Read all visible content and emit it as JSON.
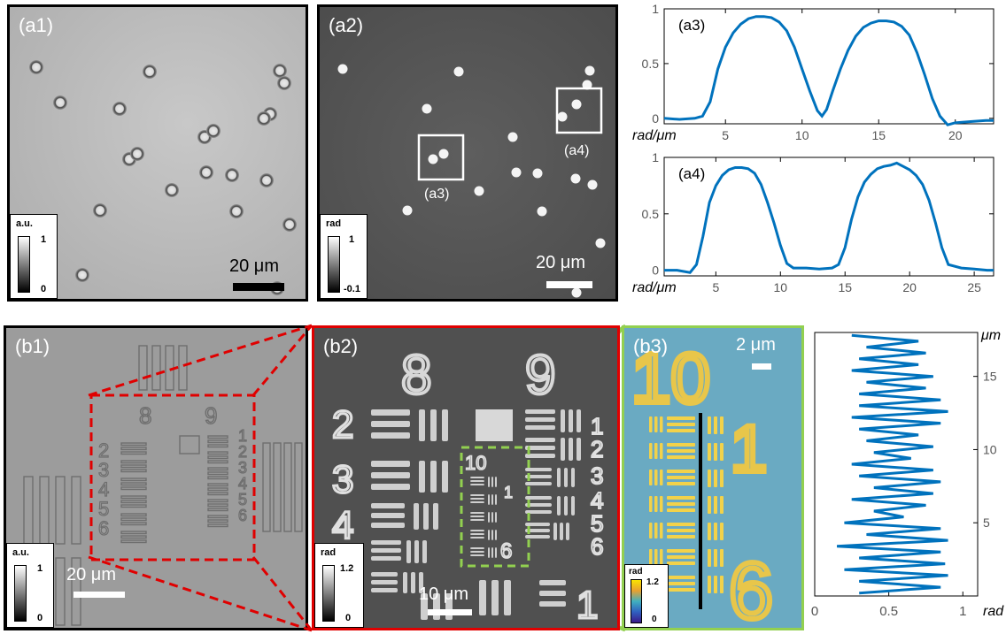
{
  "panels": {
    "a1": {
      "label": "(a1)",
      "colorbar": {
        "unit": "a.u.",
        "max": "1",
        "min": "0"
      },
      "scalebar": "20 μm"
    },
    "a2": {
      "label": "(a2)",
      "colorbar": {
        "unit": "rad",
        "max": "1",
        "min": "-0.1"
      },
      "scalebar": "20 μm",
      "boxes": [
        "(a3)",
        "(a4)"
      ]
    },
    "b1": {
      "label": "(b1)",
      "colorbar": {
        "unit": "a.u.",
        "max": "1",
        "min": "0"
      },
      "scalebar": "20 μm"
    },
    "b2": {
      "label": "(b2)",
      "colorbar": {
        "unit": "rad",
        "max": "1.2",
        "min": "0"
      },
      "scalebar": "10 μm"
    },
    "b3": {
      "label": "(b3)",
      "colorbar": {
        "unit": "rad",
        "max": "1.2",
        "min": "0"
      },
      "scalebar": "2 μm"
    }
  },
  "target_labels": {
    "group8": "8",
    "group9": "9",
    "el2": "2",
    "el3": "3",
    "el4": "4",
    "el5": "5",
    "el6": "6",
    "r1": "1",
    "r2": "2",
    "r3": "3",
    "r4": "4",
    "r5": "5",
    "r6": "6",
    "g10": "10",
    "g10_1": "1",
    "g10_6": "6",
    "b2_bottom_1": "1"
  },
  "colors": {
    "accent_red": "#e00000",
    "accent_green": "#92d050",
    "line_blue": "#0072bd"
  },
  "chart_data": [
    {
      "type": "line",
      "label": "(a3)",
      "xlabel": "rad/μm",
      "xlim": [
        1,
        22.5
      ],
      "ylim": [
        -0.05,
        1
      ],
      "xticks": [
        5,
        10,
        15,
        20
      ],
      "yticks": [
        0,
        0.5,
        1
      ],
      "ytick_labels": [
        "0",
        "0.5",
        "1"
      ],
      "x": [
        1,
        2,
        3,
        3.5,
        4,
        4.5,
        5,
        5.5,
        6,
        6.5,
        7,
        7.5,
        8,
        8.5,
        9,
        9.5,
        10,
        10.5,
        11,
        11.3,
        11.6,
        12,
        12.5,
        13,
        13.5,
        14,
        14.5,
        15,
        15.5,
        16,
        16.5,
        17,
        17.5,
        18,
        18.5,
        19,
        19.5,
        20,
        21,
        22,
        22.5
      ],
      "y": [
        0.0,
        -0.01,
        0.0,
        0.02,
        0.15,
        0.45,
        0.65,
        0.78,
        0.86,
        0.91,
        0.93,
        0.93,
        0.92,
        0.88,
        0.8,
        0.65,
        0.45,
        0.25,
        0.07,
        0.02,
        0.08,
        0.25,
        0.45,
        0.62,
        0.75,
        0.83,
        0.87,
        0.89,
        0.89,
        0.88,
        0.84,
        0.76,
        0.6,
        0.4,
        0.18,
        0.02,
        -0.06,
        -0.04,
        -0.03,
        -0.02,
        -0.02
      ]
    },
    {
      "type": "line",
      "label": "(a4)",
      "xlabel": "rad/μm",
      "xlim": [
        1,
        26.5
      ],
      "ylim": [
        -0.05,
        1
      ],
      "xticks": [
        5,
        10,
        15,
        20,
        25
      ],
      "yticks": [
        0,
        0.5,
        1
      ],
      "ytick_labels": [
        "0",
        "0.5",
        "1"
      ],
      "x": [
        1,
        2,
        3,
        3.5,
        4,
        4.5,
        5,
        5.5,
        6,
        6.5,
        7,
        7.5,
        8,
        8.5,
        9,
        9.5,
        10,
        10.5,
        11,
        11.5,
        12,
        13,
        14,
        14.5,
        15,
        15.5,
        16,
        16.5,
        17,
        17.5,
        18,
        18.5,
        19,
        19.5,
        20,
        20.5,
        21,
        21.5,
        22,
        22.5,
        23,
        24,
        25,
        26,
        26.5
      ],
      "y": [
        0.0,
        0.0,
        -0.02,
        0.05,
        0.3,
        0.6,
        0.75,
        0.84,
        0.89,
        0.91,
        0.91,
        0.9,
        0.86,
        0.76,
        0.6,
        0.42,
        0.22,
        0.06,
        0.02,
        0.02,
        0.02,
        0.01,
        0.02,
        0.05,
        0.2,
        0.45,
        0.65,
        0.78,
        0.85,
        0.9,
        0.92,
        0.93,
        0.95,
        0.92,
        0.89,
        0.84,
        0.76,
        0.62,
        0.42,
        0.2,
        0.05,
        0.02,
        0.01,
        0.0,
        0.0
      ]
    },
    {
      "type": "line",
      "label": "",
      "xlabel": "rad",
      "ylabel": "μm",
      "xlim": [
        0,
        1.1
      ],
      "ylim": [
        0,
        18
      ],
      "xticks": [
        0,
        0.5,
        1
      ],
      "xtick_labels": [
        "0",
        "0.5",
        "1"
      ],
      "yticks": [
        5,
        10,
        15
      ],
      "orientation": "vertical",
      "y": [
        0.2,
        0.6,
        1.0,
        1.4,
        1.8,
        2.2,
        2.6,
        3.0,
        3.4,
        3.8,
        4.2,
        4.6,
        5.0,
        5.4,
        5.8,
        6.2,
        6.6,
        7.0,
        7.4,
        7.8,
        8.2,
        8.6,
        9.0,
        9.4,
        9.8,
        10.2,
        10.6,
        11.0,
        11.4,
        11.8,
        12.2,
        12.6,
        13.0,
        13.4,
        13.8,
        14.2,
        14.6,
        15.0,
        15.4,
        15.8,
        16.2,
        16.6,
        17.0,
        17.4,
        17.8
      ],
      "x": [
        0.3,
        0.85,
        0.3,
        0.9,
        0.2,
        0.88,
        0.3,
        0.85,
        0.15,
        0.9,
        0.35,
        0.85,
        0.2,
        0.6,
        0.4,
        0.75,
        0.25,
        0.8,
        0.4,
        0.85,
        0.3,
        0.8,
        0.25,
        0.65,
        0.4,
        0.8,
        0.35,
        0.7,
        0.3,
        0.85,
        0.25,
        0.9,
        0.3,
        0.85,
        0.3,
        0.75,
        0.35,
        0.8,
        0.25,
        0.7,
        0.3,
        0.75,
        0.35,
        0.7,
        0.25
      ]
    }
  ]
}
